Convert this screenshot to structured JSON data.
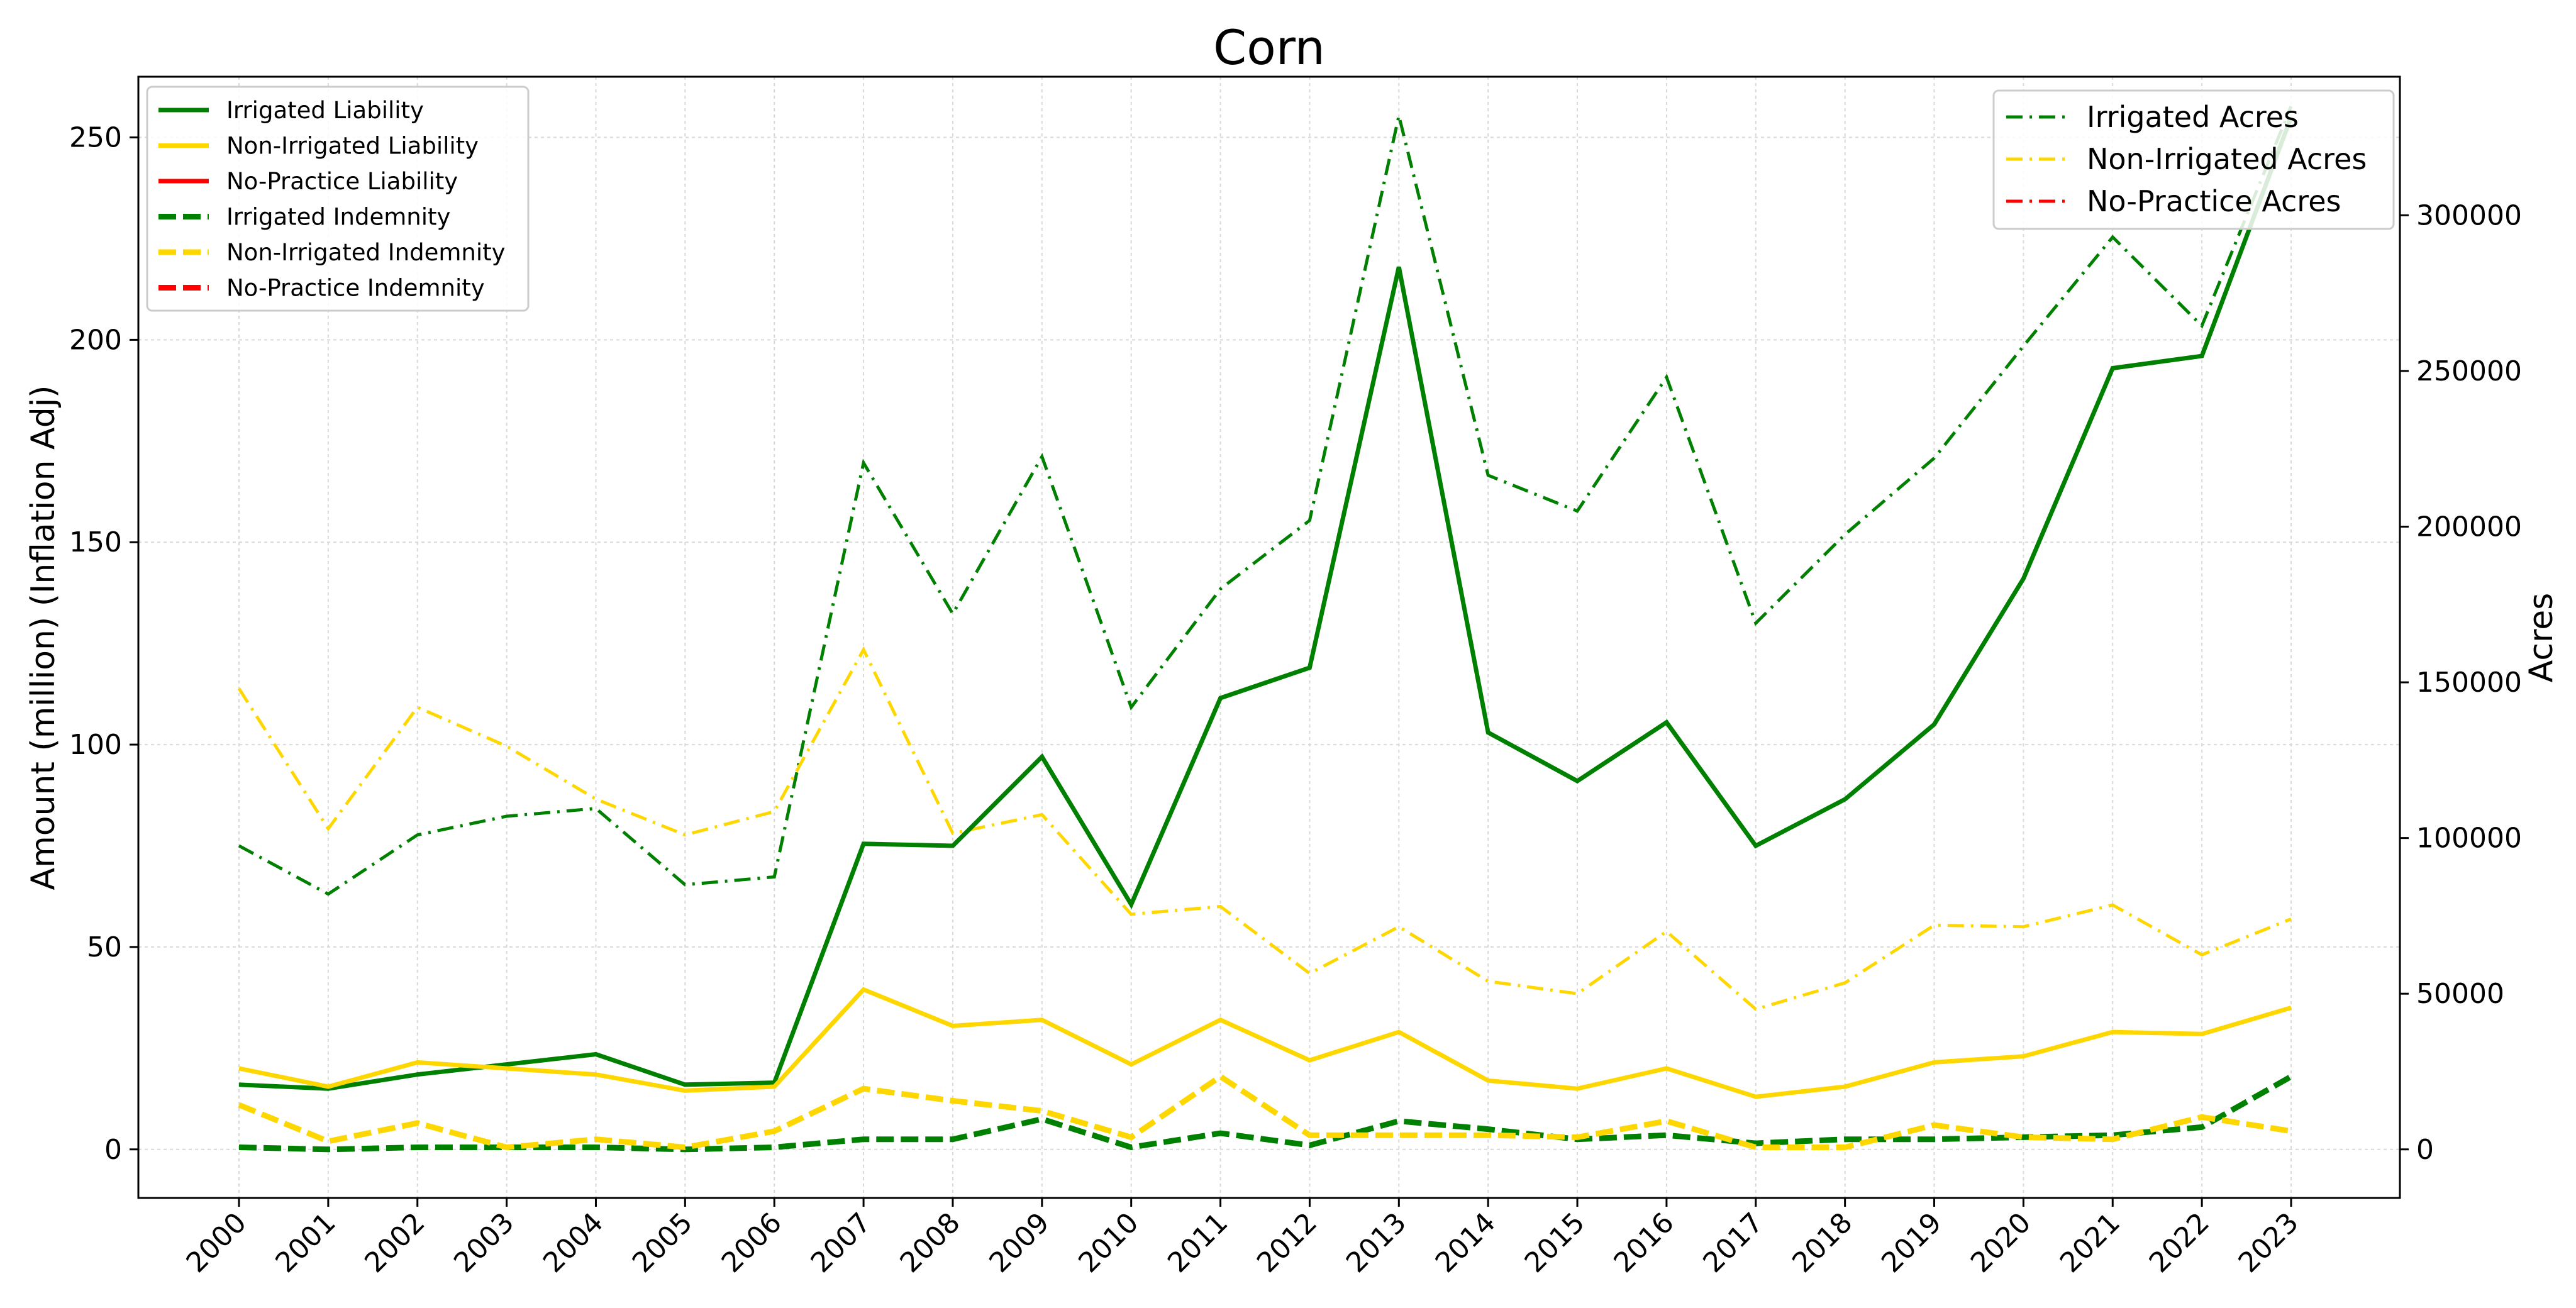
{
  "chart_data": {
    "type": "line",
    "title": "Corn",
    "ylabel": "Amount (million) (Inflation Adj)",
    "y2label": "Acres",
    "x": [
      2000,
      2001,
      2002,
      2003,
      2004,
      2005,
      2006,
      2007,
      2008,
      2009,
      2010,
      2011,
      2012,
      2013,
      2014,
      2015,
      2016,
      2017,
      2018,
      2019,
      2020,
      2021,
      2022,
      2023
    ],
    "ylim": [
      -12,
      265
    ],
    "y2lim": [
      -15600,
      344500
    ],
    "yticks": [
      0,
      50,
      100,
      150,
      200,
      250
    ],
    "y2ticks": [
      0,
      50000,
      100000,
      150000,
      200000,
      250000,
      300000
    ],
    "grid": true,
    "legend_left_position": "top-left",
    "legend_right_position": "top-right",
    "colors": {
      "irrigated": "#008000",
      "non_irrigated": "#FFD700",
      "no_practice": "#FF0000"
    },
    "series_left": [
      {
        "name": "Irrigated Liability",
        "color": "#008000",
        "style": "solid",
        "values": [
          16,
          15,
          18.5,
          21,
          23.5,
          16,
          16.5,
          75.5,
          75,
          97,
          60.5,
          111.5,
          119,
          218,
          103,
          91,
          105.5,
          75,
          86.5,
          105,
          141,
          193,
          196,
          255
        ]
      },
      {
        "name": "Non-Irrigated Liability",
        "color": "#FFD700",
        "style": "solid",
        "values": [
          20,
          15.5,
          21.5,
          20,
          18.5,
          14.5,
          15.5,
          39.5,
          30.5,
          32,
          21,
          32,
          22,
          29,
          17,
          15,
          20,
          13,
          15.5,
          21.5,
          23,
          29,
          28.5,
          35
        ]
      },
      {
        "name": "No-Practice Liability",
        "color": "#FF0000",
        "style": "solid",
        "values": []
      },
      {
        "name": "Irrigated Indemnity",
        "color": "#008000",
        "style": "dashed",
        "values": [
          0.5,
          0,
          0.5,
          0.5,
          0.5,
          0,
          0.5,
          2.5,
          2.5,
          7.5,
          0.5,
          4,
          1,
          7,
          5,
          2.5,
          3.5,
          1.5,
          2.5,
          2.5,
          3,
          3.5,
          5.5,
          18
        ]
      },
      {
        "name": "Non-Irrigated Indemnity",
        "color": "#FFD700",
        "style": "dashed",
        "values": [
          11,
          2,
          6.5,
          0.5,
          2.5,
          0.5,
          4.5,
          15,
          12,
          9.5,
          3,
          18,
          3.5,
          3.5,
          3.5,
          3,
          7,
          0.5,
          0.5,
          6,
          3,
          2.5,
          8,
          4.5
        ]
      },
      {
        "name": "No-Practice Indemnity",
        "color": "#FF0000",
        "style": "dashed",
        "values": []
      }
    ],
    "series_right": [
      {
        "name": "Irrigated Acres",
        "color": "#008000",
        "style": "dashdot",
        "values": [
          97500,
          82000,
          101000,
          107000,
          109500,
          85000,
          87500,
          220500,
          172000,
          222500,
          142000,
          180000,
          202000,
          332000,
          216500,
          205000,
          248000,
          169000,
          197500,
          222000,
          258000,
          293000,
          264500,
          335000
        ]
      },
      {
        "name": "Non-Irrigated Acres",
        "color": "#FFD700",
        "style": "dashdot",
        "values": [
          148000,
          103000,
          142000,
          129500,
          112500,
          101000,
          108500,
          160500,
          101500,
          107500,
          75500,
          78000,
          56500,
          71500,
          54000,
          50000,
          70000,
          45000,
          53500,
          72000,
          71500,
          78500,
          62500,
          74000
        ]
      },
      {
        "name": "No-Practice Acres",
        "color": "#FF0000",
        "style": "dashdot",
        "values": []
      }
    ]
  }
}
